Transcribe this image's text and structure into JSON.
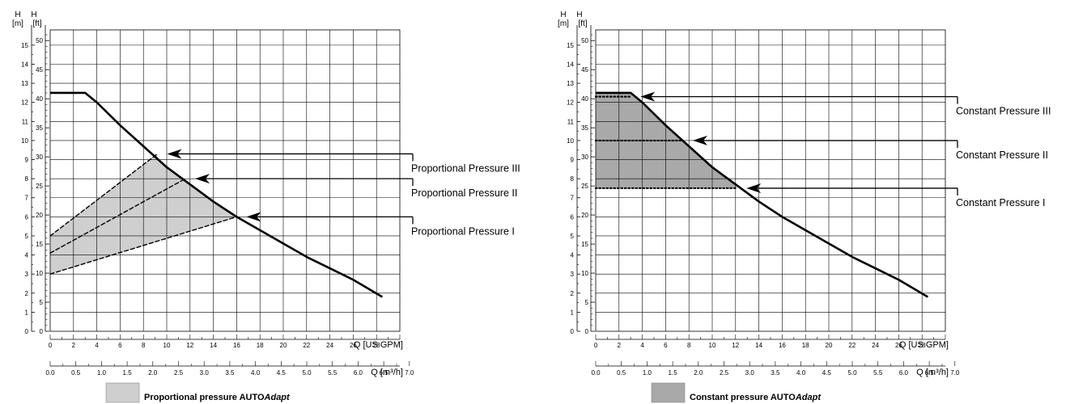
{
  "chart_data": [
    {
      "type": "line",
      "id": "proportional",
      "y_left_label": "H",
      "y_left_unit": "[m]",
      "y_right_label": "H",
      "y_right_unit": "[ft]",
      "x_top_label": "Q [US GPM]",
      "x_bottom_label": "Q [m³/h]",
      "ylim_m": [
        0,
        15.8
      ],
      "xlim_gpm": [
        0,
        30
      ],
      "ticks_m": [
        "0",
        "1",
        "2",
        "3",
        "4",
        "5",
        "6",
        "7",
        "8",
        "9",
        "10",
        "11",
        "12",
        "13",
        "14",
        "15"
      ],
      "ticks_ft": [
        "0",
        "5",
        "10",
        "15",
        "20",
        "25",
        "30",
        "35",
        "40",
        "45",
        "50"
      ],
      "ticks_gpm": [
        "0",
        "2",
        "4",
        "6",
        "8",
        "10",
        "12",
        "14",
        "16",
        "18",
        "20",
        "22",
        "24",
        "26",
        "28"
      ],
      "ticks_m3h": [
        "0.0",
        "0.5",
        "1.0",
        "1.5",
        "2.0",
        "2.5",
        "3.0",
        "3.5",
        "4.0",
        "4.5",
        "5.0",
        "5.5",
        "6.0",
        "6.5",
        "7.0"
      ],
      "pump_curve": {
        "x": [
          0,
          3.0,
          4,
          6,
          8,
          10,
          12,
          14,
          16,
          18,
          20,
          22,
          24,
          26,
          28.5
        ],
        "y": [
          12.5,
          12.5,
          12.0,
          10.8,
          9.7,
          8.6,
          7.7,
          6.8,
          6.0,
          5.3,
          4.6,
          3.9,
          3.3,
          2.7,
          1.8
        ]
      },
      "lines": [
        {
          "x": [
            0,
            9.2
          ],
          "y": [
            5.0,
            9.3
          ],
          "style": "dashed"
        },
        {
          "x": [
            0,
            11.6
          ],
          "y": [
            4.1,
            8.0
          ],
          "style": "dashed"
        },
        {
          "x": [
            0,
            16.0
          ],
          "y": [
            3.0,
            6.0
          ],
          "style": "dashed"
        }
      ],
      "shaded_region": "Proportional pressure AUTOAdapt",
      "shade_color": "#cfcfcf",
      "annotations": [
        {
          "text": "Proportional Pressure III",
          "x": 9.2,
          "y": 9.3
        },
        {
          "text": "Proportional  Pressure II",
          "x": 11.6,
          "y": 8.0
        },
        {
          "text": "Proportional  Pressure I",
          "x": 16.0,
          "y": 6.0
        }
      ],
      "legend": {
        "prefix": "Proportional pressure AUTO",
        "italic": "Adapt",
        "position": "bottom-center"
      }
    },
    {
      "type": "line",
      "id": "constant",
      "y_left_label": "H",
      "y_left_unit": "[m]",
      "y_right_label": "H",
      "y_right_unit": "[ft]",
      "x_top_label": "Q [US GPM]",
      "x_bottom_label": "Q [m³/h]",
      "ylim_m": [
        0,
        15.8
      ],
      "xlim_gpm": [
        0,
        30
      ],
      "ticks_m": [
        "0",
        "1",
        "2",
        "3",
        "4",
        "5",
        "6",
        "7",
        "8",
        "9",
        "10",
        "11",
        "12",
        "13",
        "14",
        "15"
      ],
      "ticks_ft": [
        "0",
        "5",
        "10",
        "15",
        "20",
        "25",
        "30",
        "35",
        "40",
        "45",
        "50"
      ],
      "ticks_gpm": [
        "0",
        "2",
        "4",
        "6",
        "8",
        "10",
        "12",
        "14",
        "16",
        "18",
        "20",
        "22",
        "24",
        "26",
        "28"
      ],
      "ticks_m3h": [
        "0.0",
        "0.5",
        "1.0",
        "1.5",
        "2.0",
        "2.5",
        "3.0",
        "3.5",
        "4.0",
        "4.5",
        "5.0",
        "5.5",
        "6.0",
        "6.5",
        "7.0"
      ],
      "pump_curve": {
        "x": [
          0,
          3.0,
          4,
          6,
          8,
          10,
          12,
          14,
          16,
          18,
          20,
          22,
          24,
          26,
          28.5
        ],
        "y": [
          12.5,
          12.5,
          12.0,
          10.8,
          9.7,
          8.6,
          7.7,
          6.8,
          6.0,
          5.3,
          4.6,
          3.9,
          3.3,
          2.7,
          1.8
        ]
      },
      "lines": [
        {
          "x": [
            0,
            3.0
          ],
          "y": [
            12.3,
            12.3
          ],
          "style": "dotted"
        },
        {
          "x": [
            0,
            7.5
          ],
          "y": [
            10.0,
            10.0
          ],
          "style": "dotted"
        },
        {
          "x": [
            0,
            12.1
          ],
          "y": [
            7.5,
            7.5
          ],
          "style": "dotted"
        }
      ],
      "shaded_region": "Constant pressure AUTOAdapt",
      "shade_color": "#a9a9a9",
      "annotations": [
        {
          "text": "Constant Pressure III",
          "x": 3.0,
          "y": 12.3
        },
        {
          "text": "Constant Pressure II",
          "x": 7.5,
          "y": 10.0
        },
        {
          "text": "Constant Pressure I",
          "x": 12.1,
          "y": 7.5
        }
      ],
      "legend": {
        "prefix": "Constant pressure AUTO",
        "italic": "Adapt",
        "position": "bottom-center"
      }
    }
  ]
}
